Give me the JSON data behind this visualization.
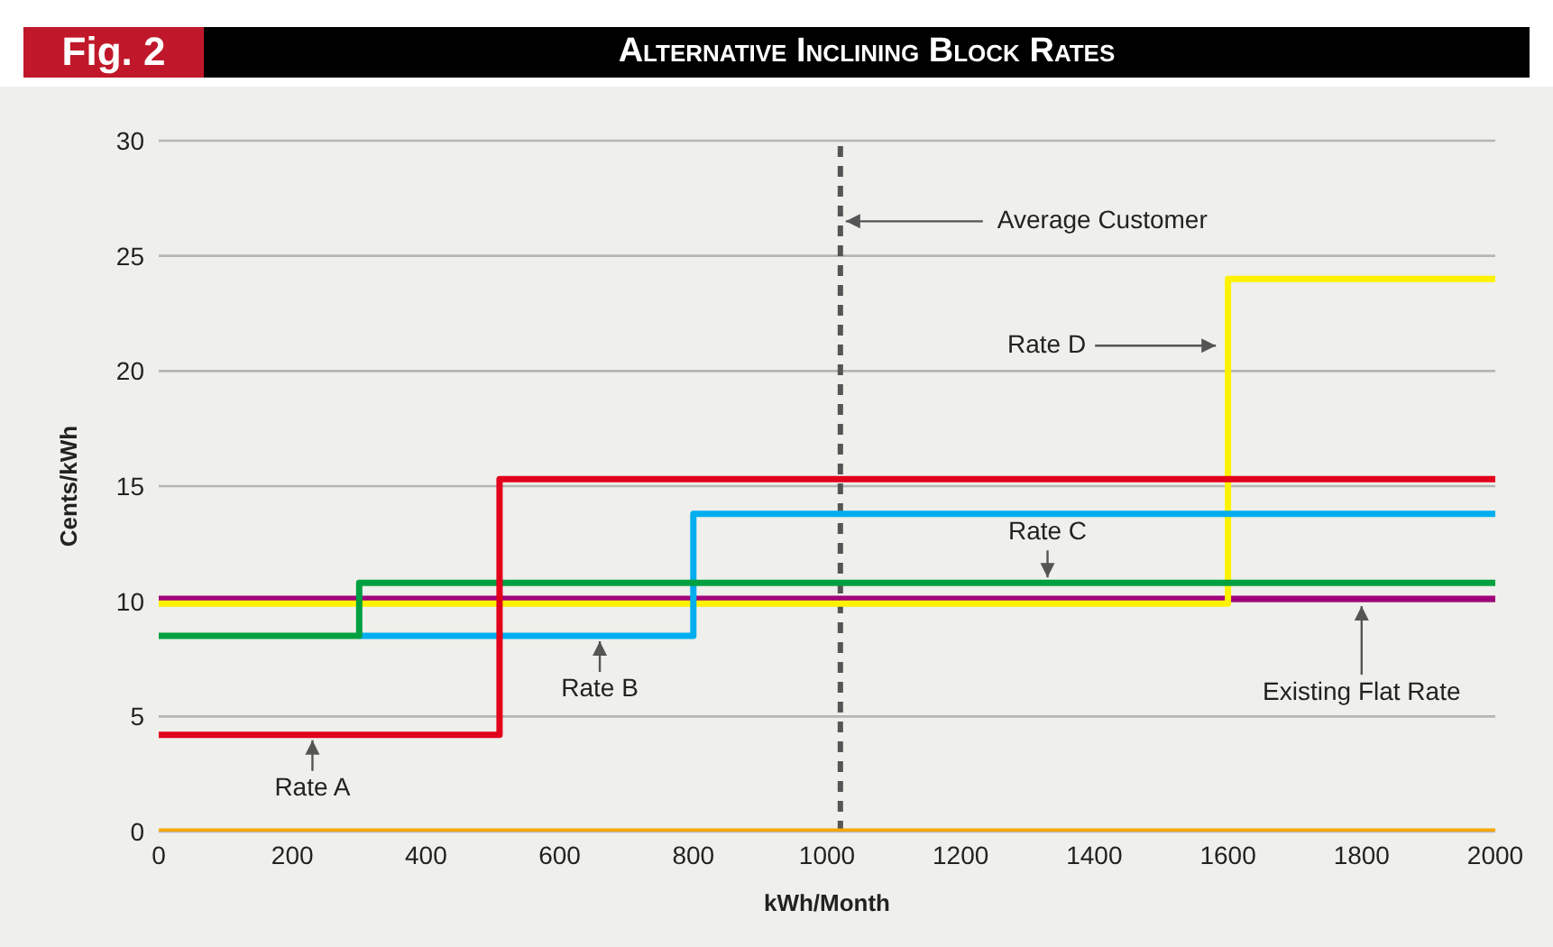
{
  "chart_data": {
    "type": "step",
    "title": "Alternative Inclining Block Rates",
    "xlabel": "kWh/Month",
    "ylabel": "Cents/kWh",
    "xlim": [
      0,
      2000
    ],
    "xticks": [
      0,
      200,
      400,
      600,
      800,
      1000,
      1200,
      1400,
      1600,
      1800,
      2000
    ],
    "ylim": [
      0,
      30
    ],
    "yticks": [
      0,
      5,
      10,
      15,
      20,
      25,
      30
    ],
    "grid": "y",
    "marker": "none",
    "line_style": "solid",
    "series": [
      {
        "color": "#f5a800",
        "x": [
          0,
          2000
        ],
        "values": [
          0,
          0
        ]
      },
      {
        "color": "#a0007a",
        "x": [
          0,
          2000
        ],
        "values": [
          10.1,
          10.1
        ]
      },
      {
        "color": "#fff200",
        "x": [
          0,
          1600,
          2000
        ],
        "values": [
          9.9,
          24,
          24
        ]
      },
      {
        "color": "#00aeef",
        "x": [
          300,
          800,
          2000
        ],
        "values": [
          8.5,
          13.8,
          13.8
        ]
      },
      {
        "color": "#00a040",
        "x": [
          0,
          300,
          2000
        ],
        "values": [
          8.5,
          10.8,
          10.8
        ]
      },
      {
        "color": "#e2001a",
        "x": [
          0,
          510,
          2000
        ],
        "values": [
          4.2,
          15.3,
          15.3
        ]
      }
    ],
    "ref_lines": [
      {
        "axis": "x",
        "value": 1020,
        "label": null,
        "color": "#555555",
        "line_style": "dashed"
      }
    ],
    "annotations": [
      "Fig. 2",
      {
        "text": "Average Customer",
        "x": 1020,
        "y": 26.5
      },
      {
        "text": "Rate A",
        "x": 230,
        "y": 4.2
      },
      {
        "text": "Rate B",
        "x": 660,
        "y": 8.5
      },
      {
        "text": "Rate C",
        "x": 1330,
        "y": 10.8
      },
      {
        "text": "Rate D",
        "x": 1590,
        "y": 21.1
      },
      {
        "text": "Existing Flat Rate",
        "x": 1800,
        "y": 10.1
      }
    ]
  }
}
